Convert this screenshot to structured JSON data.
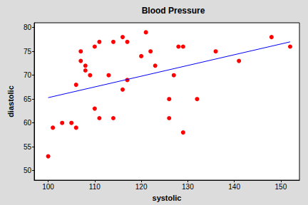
{
  "chart_data": {
    "type": "scatter",
    "title": "Blood Pressure",
    "x_label": "systolic",
    "y_label": "diastolic",
    "xlim": [
      97,
      154
    ],
    "xticks": [
      100,
      110,
      120,
      130,
      140,
      150
    ],
    "ylim": [
      48,
      81
    ],
    "yticks": [
      50,
      55,
      60,
      65,
      70,
      75,
      80
    ],
    "grid": false,
    "series": [
      {
        "type": "scatter",
        "color": "#ff0000",
        "marker": "circle",
        "x": [
          100,
          101,
          103,
          105,
          106,
          106,
          107,
          107,
          108,
          108,
          109,
          110,
          110,
          111,
          111,
          113,
          114,
          114,
          116,
          116,
          117,
          117,
          120,
          121,
          122,
          123,
          126,
          126,
          127,
          128,
          129,
          129,
          132,
          136,
          141,
          148,
          152
        ],
        "values": [
          53,
          59,
          60,
          60,
          59,
          68,
          75,
          73,
          72,
          71,
          70,
          76,
          63,
          77,
          61,
          70,
          77,
          61,
          78,
          67,
          77,
          69,
          74,
          79,
          75,
          72,
          65,
          61,
          70,
          76,
          76,
          58,
          65,
          75,
          73,
          78,
          76
        ]
      },
      {
        "type": "line",
        "color": "#0000ff",
        "line_style": "solid",
        "x": [
          100,
          152
        ],
        "values": [
          65.3,
          77
        ]
      }
    ]
  }
}
